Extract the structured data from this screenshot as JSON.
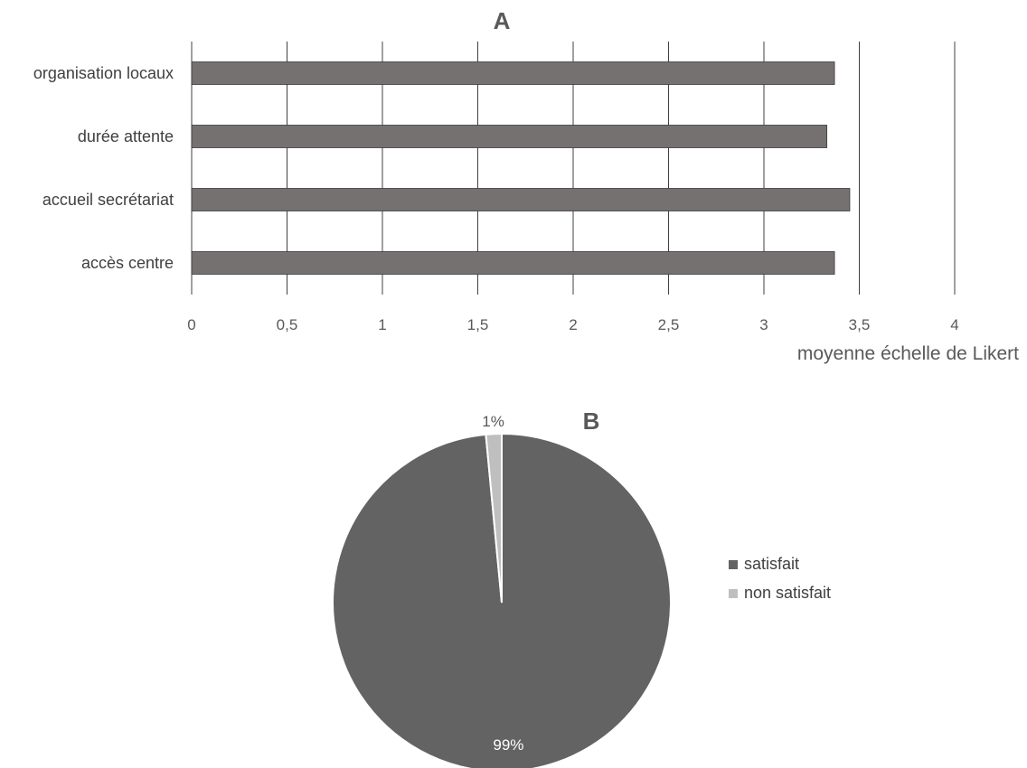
{
  "chart_data": [
    {
      "type": "bar",
      "orientation": "horizontal",
      "title": "A",
      "categories": [
        "organisation locaux",
        "durée attente",
        "accueil secrétariat",
        "accès centre"
      ],
      "values": [
        3.37,
        3.33,
        3.45,
        3.37
      ],
      "xlabel": "moyenne échelle de Likert",
      "ylabel": "",
      "xlim": [
        0,
        4
      ],
      "ticks": [
        "0",
        "0,5",
        "1",
        "1,5",
        "2",
        "2,5",
        "3",
        "3,5",
        "4"
      ],
      "grid": true,
      "colors": {
        "bar": "#767171",
        "grid": "#404040"
      }
    },
    {
      "type": "pie",
      "title": "B",
      "labels": [
        "satisfait",
        "non satisfait"
      ],
      "values": [
        98.5,
        1.5
      ],
      "data_labels": [
        "99%",
        "1%"
      ],
      "legend": "right",
      "colors": {
        "satisfait": "#636363",
        "non satisfait": "#bfbfbf"
      }
    }
  ]
}
